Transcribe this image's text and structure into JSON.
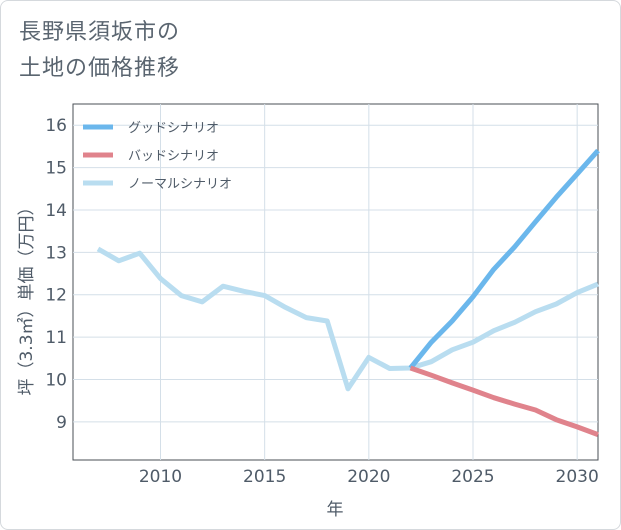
{
  "title_lines": [
    "長野県須坂市の",
    "土地の価格推移"
  ],
  "chart_data": {
    "type": "line",
    "title": "長野県須坂市の土地の価格推移",
    "xlabel": "年",
    "ylabel": "坪（3.3㎡）単価（万円）",
    "xlim": [
      2005.8,
      2031
    ],
    "ylim": [
      8.1,
      16.5
    ],
    "xticks": [
      2010,
      2015,
      2020,
      2025,
      2030
    ],
    "yticks": [
      9,
      10,
      11,
      12,
      13,
      14,
      15,
      16
    ],
    "grid": true,
    "legend_position": "top-left",
    "series": [
      {
        "name": "グッドシナリオ",
        "color": "#6bb7ec",
        "x": [
          2022,
          2023,
          2024,
          2025,
          2026,
          2027,
          2028,
          2029,
          2030,
          2031
        ],
        "values": [
          10.27,
          10.88,
          11.38,
          11.95,
          12.6,
          13.13,
          13.72,
          14.3,
          14.85,
          15.4
        ]
      },
      {
        "name": "バッドシナリオ",
        "color": "#e0838c",
        "x": [
          2022,
          2023,
          2024,
          2025,
          2026,
          2027,
          2028,
          2029,
          2030,
          2031
        ],
        "values": [
          10.27,
          10.1,
          9.92,
          9.75,
          9.57,
          9.42,
          9.28,
          9.05,
          8.88,
          8.7
        ]
      },
      {
        "name": "ノーマルシナリオ",
        "color": "#b9ddf0",
        "x": [
          2007,
          2008,
          2009,
          2010,
          2011,
          2012,
          2013,
          2014,
          2015,
          2016,
          2017,
          2018,
          2019,
          2020,
          2021,
          2022,
          2023,
          2024,
          2025,
          2026,
          2027,
          2028,
          2029,
          2030,
          2031
        ],
        "values": [
          13.08,
          12.8,
          12.98,
          12.38,
          11.98,
          11.83,
          12.2,
          12.08,
          11.98,
          11.7,
          11.46,
          11.38,
          9.78,
          10.52,
          10.26,
          10.27,
          10.42,
          10.7,
          10.88,
          11.15,
          11.35,
          11.6,
          11.78,
          12.05,
          12.25
        ]
      }
    ]
  }
}
